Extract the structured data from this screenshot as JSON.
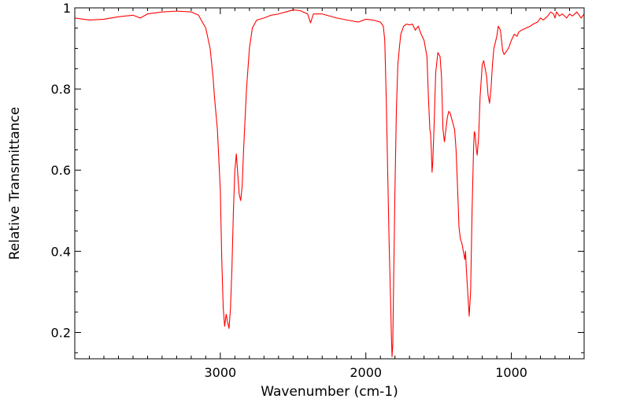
{
  "chart_data": {
    "type": "line",
    "title": "",
    "xlabel": "Wavenumber (cm-1)",
    "ylabel": "Relative Transmittance",
    "xlim": [
      4000,
      500
    ],
    "ylim": [
      0.135,
      1.0
    ],
    "x_axis_reversed": true,
    "grid": false,
    "legend": "none",
    "x_ticks": [
      3000,
      2000,
      1000
    ],
    "x_tick_labels": [
      "3000",
      "2000",
      "1000"
    ],
    "y_ticks": [
      0.2,
      0.4,
      0.6,
      0.8,
      1.0
    ],
    "y_tick_labels": [
      "0.2",
      "0.4",
      "0.6",
      "0.8",
      "1"
    ],
    "series": [
      {
        "color": "#ff0000",
        "points": [
          [
            4000,
            0.975
          ],
          [
            3900,
            0.97
          ],
          [
            3800,
            0.972
          ],
          [
            3700,
            0.978
          ],
          [
            3600,
            0.982
          ],
          [
            3550,
            0.975
          ],
          [
            3500,
            0.985
          ],
          [
            3400,
            0.99
          ],
          [
            3300,
            0.992
          ],
          [
            3200,
            0.99
          ],
          [
            3150,
            0.982
          ],
          [
            3100,
            0.95
          ],
          [
            3070,
            0.9
          ],
          [
            3050,
            0.83
          ],
          [
            3040,
            0.78
          ],
          [
            3020,
            0.7
          ],
          [
            3000,
            0.55
          ],
          [
            2990,
            0.38
          ],
          [
            2980,
            0.26
          ],
          [
            2970,
            0.215
          ],
          [
            2960,
            0.245
          ],
          [
            2950,
            0.225
          ],
          [
            2940,
            0.21
          ],
          [
            2930,
            0.26
          ],
          [
            2920,
            0.36
          ],
          [
            2910,
            0.5
          ],
          [
            2900,
            0.6
          ],
          [
            2890,
            0.64
          ],
          [
            2880,
            0.59
          ],
          [
            2870,
            0.54
          ],
          [
            2860,
            0.525
          ],
          [
            2850,
            0.56
          ],
          [
            2840,
            0.65
          ],
          [
            2820,
            0.8
          ],
          [
            2800,
            0.9
          ],
          [
            2780,
            0.95
          ],
          [
            2750,
            0.97
          ],
          [
            2700,
            0.975
          ],
          [
            2650,
            0.982
          ],
          [
            2600,
            0.985
          ],
          [
            2550,
            0.99
          ],
          [
            2500,
            0.995
          ],
          [
            2450,
            0.993
          ],
          [
            2400,
            0.985
          ],
          [
            2380,
            0.963
          ],
          [
            2360,
            0.985
          ],
          [
            2300,
            0.985
          ],
          [
            2200,
            0.975
          ],
          [
            2100,
            0.968
          ],
          [
            2050,
            0.965
          ],
          [
            2000,
            0.972
          ],
          [
            1950,
            0.97
          ],
          [
            1900,
            0.965
          ],
          [
            1880,
            0.955
          ],
          [
            1870,
            0.92
          ],
          [
            1860,
            0.78
          ],
          [
            1850,
            0.6
          ],
          [
            1840,
            0.42
          ],
          [
            1830,
            0.28
          ],
          [
            1825,
            0.2
          ],
          [
            1820,
            0.14
          ],
          [
            1815,
            0.17
          ],
          [
            1810,
            0.3
          ],
          [
            1800,
            0.55
          ],
          [
            1790,
            0.75
          ],
          [
            1780,
            0.86
          ],
          [
            1770,
            0.9
          ],
          [
            1760,
            0.935
          ],
          [
            1740,
            0.955
          ],
          [
            1720,
            0.96
          ],
          [
            1700,
            0.958
          ],
          [
            1680,
            0.96
          ],
          [
            1660,
            0.945
          ],
          [
            1640,
            0.955
          ],
          [
            1620,
            0.935
          ],
          [
            1600,
            0.92
          ],
          [
            1580,
            0.88
          ],
          [
            1570,
            0.78
          ],
          [
            1560,
            0.7
          ],
          [
            1555,
            0.69
          ],
          [
            1550,
            0.65
          ],
          [
            1545,
            0.595
          ],
          [
            1540,
            0.62
          ],
          [
            1530,
            0.72
          ],
          [
            1520,
            0.84
          ],
          [
            1505,
            0.89
          ],
          [
            1490,
            0.88
          ],
          [
            1480,
            0.83
          ],
          [
            1470,
            0.7
          ],
          [
            1460,
            0.67
          ],
          [
            1450,
            0.7
          ],
          [
            1440,
            0.73
          ],
          [
            1430,
            0.745
          ],
          [
            1420,
            0.74
          ],
          [
            1405,
            0.72
          ],
          [
            1390,
            0.7
          ],
          [
            1380,
            0.65
          ],
          [
            1370,
            0.56
          ],
          [
            1360,
            0.46
          ],
          [
            1350,
            0.43
          ],
          [
            1340,
            0.42
          ],
          [
            1330,
            0.4
          ],
          [
            1320,
            0.38
          ],
          [
            1315,
            0.4
          ],
          [
            1310,
            0.36
          ],
          [
            1300,
            0.3
          ],
          [
            1290,
            0.24
          ],
          [
            1280,
            0.3
          ],
          [
            1270,
            0.5
          ],
          [
            1260,
            0.65
          ],
          [
            1255,
            0.695
          ],
          [
            1250,
            0.69
          ],
          [
            1240,
            0.65
          ],
          [
            1235,
            0.637
          ],
          [
            1225,
            0.68
          ],
          [
            1215,
            0.78
          ],
          [
            1200,
            0.86
          ],
          [
            1190,
            0.87
          ],
          [
            1180,
            0.85
          ],
          [
            1170,
            0.83
          ],
          [
            1160,
            0.785
          ],
          [
            1150,
            0.765
          ],
          [
            1140,
            0.8
          ],
          [
            1130,
            0.86
          ],
          [
            1120,
            0.9
          ],
          [
            1100,
            0.93
          ],
          [
            1090,
            0.955
          ],
          [
            1075,
            0.945
          ],
          [
            1060,
            0.895
          ],
          [
            1050,
            0.885
          ],
          [
            1040,
            0.89
          ],
          [
            1020,
            0.9
          ],
          [
            1000,
            0.92
          ],
          [
            980,
            0.935
          ],
          [
            960,
            0.93
          ],
          [
            950,
            0.94
          ],
          [
            930,
            0.945
          ],
          [
            900,
            0.95
          ],
          [
            870,
            0.955
          ],
          [
            850,
            0.96
          ],
          [
            820,
            0.965
          ],
          [
            800,
            0.975
          ],
          [
            780,
            0.97
          ],
          [
            750,
            0.98
          ],
          [
            730,
            0.99
          ],
          [
            710,
            0.985
          ],
          [
            700,
            0.975
          ],
          [
            690,
            0.99
          ],
          [
            670,
            0.98
          ],
          [
            650,
            0.985
          ],
          [
            620,
            0.975
          ],
          [
            600,
            0.985
          ],
          [
            580,
            0.98
          ],
          [
            550,
            0.99
          ],
          [
            520,
            0.975
          ],
          [
            500,
            0.985
          ]
        ]
      }
    ]
  }
}
